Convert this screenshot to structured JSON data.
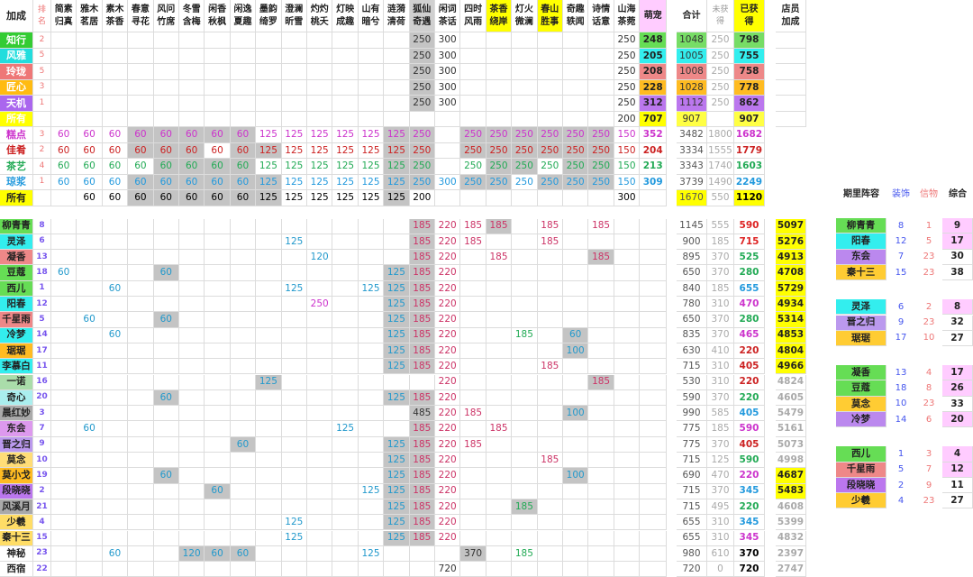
{
  "title": "加成",
  "hdr": {
    "rank": "排\n名",
    "cols": [
      "简素\n归真",
      "雅木\n茗居",
      "素木\n茶香",
      "春意\n寻花",
      "风问\n竹席",
      "冬雪\n含梅",
      "闲香\n秋枫",
      "闲逸\n夏趣",
      "墨韵\n绮罗",
      "澄澜\n昕雪",
      "灼灼\n桃夭",
      "灯映\n成趣",
      "山有\n暗兮",
      "涟漪\n清荷",
      "狐仙\n奇遇",
      "闲词\n茶话",
      "四时\n风雨",
      "茶香\n绕岸",
      "灯火\n微澜",
      "春山\n胜事",
      "奇趣\n轶闻",
      "诗情\n话意",
      "山海\n茶菀"
    ],
    "pet": "萌宠",
    "total": "合计",
    "unobt": "未获\n得",
    "obt": "已获\n得",
    "staff": "店员\n加成"
  },
  "colors": {
    "gray": "#c4c4c4",
    "yellow": "#ffff00",
    "grid": "#dcdcdc",
    "ylw_total": "#ffff33",
    "pink_total": "#ffccff"
  },
  "rowsTop": [
    {
      "label": "知行",
      "lb": "#33cc33",
      "rank": "2",
      "vals": {
        "14": "250",
        "15": "300",
        "22": "250"
      },
      "gray": [
        14
      ],
      "pet": "248",
      "pb": "#66dd55",
      "total": "1048",
      "tb": "#77dd66",
      "un": "250",
      "ob": "798",
      "obb": "#77dd66"
    },
    {
      "label": "风雅",
      "lb": "#22dddd",
      "rank": "5",
      "vals": {
        "14": "250",
        "15": "300",
        "22": "250"
      },
      "gray": [
        14
      ],
      "pet": "205",
      "pb": "#33eeee",
      "total": "1005",
      "tb": "#33eeee",
      "un": "250",
      "ob": "755",
      "obb": "#33eeee"
    },
    {
      "label": "玲珑",
      "lb": "#ee7777",
      "rank": "5",
      "vals": {
        "14": "250",
        "15": "300",
        "22": "250"
      },
      "gray": [
        14
      ],
      "pet": "208",
      "pb": "#ee8888",
      "total": "1008",
      "tb": "#ee8888",
      "un": "250",
      "ob": "758",
      "obb": "#ee8888"
    },
    {
      "label": "匠心",
      "lb": "#ffbb11",
      "rank": "3",
      "vals": {
        "14": "250",
        "15": "300",
        "22": "250"
      },
      "gray": [
        14
      ],
      "pet": "228",
      "pb": "#ffbb22",
      "total": "1028",
      "tb": "#ffbb22",
      "un": "250",
      "ob": "778",
      "obb": "#ffbb22"
    },
    {
      "label": "天机",
      "lb": "#aa66ee",
      "rank": "1",
      "vals": {
        "14": "250",
        "15": "300",
        "22": "250"
      },
      "gray": [
        14
      ],
      "pet": "312",
      "pb": "#bb77ee",
      "total": "1112",
      "tb": "#bb77ee",
      "un": "250",
      "ob": "862",
      "obb": "#bb77ee"
    },
    {
      "label": "所有",
      "lb": "#ffff00",
      "rank": "",
      "vals": {
        "22": "200"
      },
      "gray": [],
      "pet": "707",
      "pb": "#ffff00",
      "total": "907",
      "tb": "#ffff44",
      "un": "",
      "ob": "907",
      "obb": "#ffff44"
    }
  ],
  "rowsMid": [
    {
      "label": "糕点",
      "lc": "#cc33cc",
      "rank": "3",
      "vals": [
        "60",
        "60",
        "60",
        "60",
        "60",
        "60",
        "60",
        "60",
        "125",
        "125",
        "125",
        "125",
        "125",
        "125",
        "250",
        "",
        "250",
        "250",
        "250",
        "250",
        "250",
        "250",
        "150"
      ],
      "gray": [
        3,
        4,
        5,
        6,
        7,
        13,
        14,
        16,
        17,
        18,
        19,
        20,
        21
      ],
      "white": [],
      "pet": "352",
      "total": "3482",
      "un": "1800",
      "ob": "1682"
    },
    {
      "label": "佳肴",
      "lc": "#cc2222",
      "rank": "2",
      "vals": [
        "60",
        "60",
        "60",
        "60",
        "60",
        "60",
        "60",
        "60",
        "125",
        "125",
        "125",
        "125",
        "125",
        "125",
        "250",
        "",
        "250",
        "250",
        "250",
        "250",
        "250",
        "250",
        "150"
      ],
      "gray": [
        3,
        4,
        5,
        7,
        8,
        13,
        14,
        16,
        17,
        18,
        19,
        20,
        21
      ],
      "white": [
        6
      ],
      "pet": "204",
      "total": "3334",
      "un": "1555",
      "ob": "1779"
    },
    {
      "label": "茶艺",
      "lc": "#22aa55",
      "rank": "4",
      "vals": [
        "60",
        "60",
        "60",
        "60",
        "60",
        "60",
        "60",
        "60",
        "125",
        "125",
        "125",
        "125",
        "125",
        "125",
        "250",
        "",
        "250",
        "250",
        "250",
        "250",
        "250",
        "250",
        "150"
      ],
      "gray": [
        4,
        5,
        6,
        7,
        13,
        14,
        17,
        18,
        20,
        21
      ],
      "white": [],
      "pet": "213",
      "total": "3343",
      "un": "1740",
      "ob": "1603"
    },
    {
      "label": "琼浆",
      "lc": "#2299dd",
      "rank": "1",
      "vals": [
        "60",
        "60",
        "60",
        "60",
        "60",
        "60",
        "60",
        "60",
        "125",
        "125",
        "125",
        "125",
        "125",
        "125",
        "250",
        "300",
        "250",
        "250",
        "250",
        "250",
        "250",
        "250",
        "150"
      ],
      "gray": [
        3,
        4,
        5,
        6,
        7,
        8,
        13,
        14,
        16,
        17,
        19,
        20,
        21
      ],
      "white": [],
      "pet": "309",
      "total": "3739",
      "un": "1490",
      "ob": "2249"
    },
    {
      "label": "所有",
      "lc": "#000000",
      "rank": "",
      "vals": [
        "",
        "60",
        "60",
        "60",
        "60",
        "60",
        "60",
        "60",
        "125",
        "125",
        "125",
        "125",
        "125",
        "125",
        "200",
        "",
        "",
        "",
        "",
        "",
        "",
        "",
        "300"
      ],
      "gray": [
        3,
        4,
        5,
        6,
        7,
        8,
        13
      ],
      "white": [],
      "pet": "",
      "total": "1670",
      "un": "550",
      "ob": "1120"
    }
  ],
  "midColors": {
    "pet": [
      "#cc33cc",
      "#cc2222",
      "#22aa55",
      "#2299dd",
      "#000000"
    ],
    "ob": [
      "#cc33cc",
      "#cc2222",
      "#22aa55",
      "#2299dd",
      "#000000"
    ]
  },
  "rowsChar": [
    {
      "name": "柳青青",
      "nb": "#66dd55",
      "rank": "8",
      "rc": "#7755ee",
      "v": {
        "14": "185",
        "15": "220",
        "16": "185",
        "17": "185",
        "19": "185",
        "21": "185"
      },
      "g": [
        14,
        17
      ],
      "t": "1145",
      "u": "555",
      "o": "590",
      "oc": "#dd2222",
      "s": "5097",
      "sb": "#ffff00"
    },
    {
      "name": "灵泽",
      "nb": "#33eeee",
      "rank": "6",
      "rc": "#7755ee",
      "v": {
        "9": "125",
        "14": "185",
        "15": "220",
        "16": "185",
        "19": "185"
      },
      "g": [
        14
      ],
      "t": "900",
      "u": "185",
      "o": "715",
      "oc": "#dd2222",
      "s": "5276",
      "sb": "#ffff00"
    },
    {
      "name": "凝香",
      "nb": "#ee8888",
      "rank": "13",
      "rc": "#7755ee",
      "v": {
        "10": "120",
        "14": "185",
        "15": "220",
        "17": "185",
        "21": "185"
      },
      "g": [
        14,
        21
      ],
      "t": "895",
      "u": "370",
      "o": "525",
      "oc": "#22aa55",
      "s": "4913",
      "sb": "#ffff00"
    },
    {
      "name": "豆蔻",
      "nb": "#66dd55",
      "rank": "18",
      "rc": "#7755ee",
      "v": {
        "0": "60",
        "4": "60",
        "13": "125",
        "14": "185",
        "15": "220"
      },
      "g": [
        4,
        13,
        14
      ],
      "t": "650",
      "u": "370",
      "o": "280",
      "oc": "#22aa55",
      "s": "4708",
      "sb": "#ffff00"
    },
    {
      "name": "西儿",
      "nb": "#66dd55",
      "rank": "1",
      "rc": "#7755ee",
      "v": {
        "2": "60",
        "9": "125",
        "12": "125",
        "13": "125",
        "14": "185",
        "15": "220"
      },
      "g": [
        13,
        14
      ],
      "t": "840",
      "u": "185",
      "o": "655",
      "oc": "#2299dd",
      "s": "5729",
      "sb": "#ffff00"
    },
    {
      "name": "阳春",
      "nb": "#33eeee",
      "rank": "12",
      "rc": "#7755ee",
      "v": {
        "10": "250",
        "13": "125",
        "14": "185",
        "15": "220"
      },
      "g": [
        13,
        14
      ],
      "t": "780",
      "u": "310",
      "o": "470",
      "oc": "#cc33cc",
      "s": "4934",
      "sb": "#ffff00"
    },
    {
      "name": "千星雨",
      "nb": "#ee8888",
      "rank": "5",
      "rc": "#7755ee",
      "v": {
        "1": "60",
        "4": "60",
        "13": "125",
        "14": "185",
        "15": "220"
      },
      "g": [
        4,
        13,
        14
      ],
      "t": "650",
      "u": "370",
      "o": "280",
      "oc": "#22aa55",
      "s": "5314",
      "sb": "#ffff00"
    },
    {
      "name": "冷梦",
      "nb": "#33eeee",
      "rank": "14",
      "rc": "#7755ee",
      "v": {
        "2": "60",
        "13": "125",
        "14": "185",
        "15": "220",
        "18": "185",
        "20": "60"
      },
      "g": [
        13,
        14,
        20
      ],
      "t": "835",
      "u": "370",
      "o": "465",
      "oc": "#cc33cc",
      "s": "4853",
      "sb": "#ffff00"
    },
    {
      "name": "琚琚",
      "nb": "#ffbb22",
      "rank": "17",
      "rc": "#7755ee",
      "v": {
        "13": "125",
        "14": "185",
        "15": "220",
        "20": "100"
      },
      "g": [
        13,
        14,
        20
      ],
      "t": "630",
      "u": "410",
      "o": "220",
      "oc": "#cc2222",
      "s": "4804",
      "sb": "#ffff00"
    },
    {
      "name": "李慕白",
      "nb": "#33eeee",
      "rank": "11",
      "rc": "#7755ee",
      "v": {
        "13": "125",
        "14": "185",
        "15": "220",
        "19": "185"
      },
      "g": [
        13,
        14
      ],
      "t": "715",
      "u": "310",
      "o": "405",
      "oc": "#cc2222",
      "s": "4966",
      "sb": "#ffff00"
    },
    {
      "name": "一诺",
      "nb": "#aaddaa",
      "rank": "16",
      "rc": "#7755ee",
      "v": {
        "8": "125",
        "15": "220",
        "21": "185"
      },
      "g": [
        8,
        21
      ],
      "t": "530",
      "u": "310",
      "o": "220",
      "oc": "#cc2222",
      "s": "4824",
      "sb": ""
    },
    {
      "name": "奇心",
      "nb": "#aaeeee",
      "rank": "20",
      "rc": "#7755ee",
      "v": {
        "4": "60",
        "13": "125",
        "14": "185",
        "15": "220"
      },
      "g": [
        4,
        13,
        14
      ],
      "t": "590",
      "u": "370",
      "o": "220",
      "oc": "#22aa55",
      "s": "4605",
      "sb": ""
    },
    {
      "name": "晨红妙",
      "nb": "#aaaaaa",
      "rank": "3",
      "rc": "#7755ee",
      "v": {
        "14": "485",
        "15": "220",
        "16": "185",
        "20": "100"
      },
      "g": [
        14,
        20
      ],
      "t": "990",
      "u": "585",
      "o": "405",
      "oc": "#2299dd",
      "s": "5479",
      "sb": ""
    },
    {
      "name": "东会",
      "nb": "#dd99ee",
      "rank": "7",
      "rc": "#7755ee",
      "v": {
        "1": "60",
        "11": "125",
        "14": "185",
        "15": "220",
        "17": "185"
      },
      "g": [
        14
      ],
      "t": "775",
      "u": "185",
      "o": "590",
      "oc": "#cc33cc",
      "s": "5161",
      "sb": ""
    },
    {
      "name": "晋之归",
      "nb": "#bb99ee",
      "rank": "9",
      "rc": "#7755ee",
      "v": {
        "7": "60",
        "13": "125",
        "14": "185",
        "15": "220",
        "16": "185"
      },
      "g": [
        7,
        13,
        14
      ],
      "t": "775",
      "u": "370",
      "o": "405",
      "oc": "#cc2222",
      "s": "5073",
      "sb": ""
    },
    {
      "name": "莫念",
      "nb": "#ffdd77",
      "rank": "10",
      "rc": "#7755ee",
      "v": {
        "13": "125",
        "14": "185",
        "15": "220",
        "19": "185"
      },
      "g": [
        13,
        14
      ],
      "t": "715",
      "u": "125",
      "o": "590",
      "oc": "#22aa55",
      "s": "4998",
      "sb": ""
    },
    {
      "name": "莫小戈",
      "nb": "#ffbb22",
      "rank": "19",
      "rc": "#7755ee",
      "v": {
        "4": "60",
        "13": "125",
        "14": "185",
        "15": "220",
        "20": "100"
      },
      "g": [
        4,
        13,
        14,
        20
      ],
      "t": "690",
      "u": "470",
      "o": "220",
      "oc": "#cc33cc",
      "s": "4687",
      "sb": "#ffff00"
    },
    {
      "name": "段晓晓",
      "nb": "#bb77ee",
      "rank": "2",
      "rc": "#7755ee",
      "v": {
        "6": "60",
        "12": "125",
        "13": "125",
        "14": "185",
        "15": "220"
      },
      "g": [
        6,
        13,
        14
      ],
      "t": "715",
      "u": "370",
      "o": "345",
      "oc": "#2299dd",
      "s": "5483",
      "sb": "#ffff00"
    },
    {
      "name": "风溪月",
      "nb": "#aaaaaa",
      "rank": "21",
      "rc": "#7755ee",
      "v": {
        "13": "125",
        "14": "185",
        "15": "220",
        "18": "185"
      },
      "g": [
        13,
        14,
        18
      ],
      "t": "715",
      "u": "495",
      "o": "220",
      "oc": "#22aa55",
      "s": "4608",
      "sb": ""
    },
    {
      "name": "少羲",
      "nb": "#ffdd66",
      "rank": "4",
      "rc": "#7755ee",
      "v": {
        "9": "125",
        "13": "125",
        "14": "185",
        "15": "220"
      },
      "g": [
        13,
        14
      ],
      "t": "655",
      "u": "310",
      "o": "345",
      "oc": "#2299dd",
      "s": "5399",
      "sb": ""
    },
    {
      "name": "秦十三",
      "nb": "#ffdd66",
      "rank": "15",
      "rc": "#7755ee",
      "v": {
        "9": "125",
        "13": "125",
        "14": "185",
        "15": "220"
      },
      "g": [
        13,
        14
      ],
      "t": "655",
      "u": "310",
      "o": "345",
      "oc": "#cc33cc",
      "s": "4832",
      "sb": ""
    },
    {
      "name": "神秘",
      "nb": "#ffffff",
      "rank": "23",
      "rc": "#7755ee",
      "v": {
        "2": "60",
        "5": "120",
        "6": "60",
        "7": "60",
        "12": "125",
        "16": "370",
        "18": "185"
      },
      "g": [
        5,
        6,
        7,
        16
      ],
      "t": "980",
      "u": "610",
      "o": "370",
      "oc": "#000000",
      "s": "2397",
      "sb": ""
    },
    {
      "name": "西宿",
      "nb": "#ffffff",
      "rank": "22",
      "rc": "#7755ee",
      "v": {
        "15": "720"
      },
      "g": [],
      "t": "720",
      "u": "0",
      "o": "720",
      "oc": "#000000",
      "s": "2747",
      "sb": ""
    }
  ],
  "side": {
    "head": {
      "team": "期里阵容",
      "zs": "装饰",
      "xw": "信物",
      "zh": "综合"
    },
    "groups": [
      [
        {
          "n": "柳青青",
          "b": "#66dd55",
          "a": "8",
          "x": "1",
          "z": "9",
          "pk": true
        },
        {
          "n": "阳春",
          "b": "#33eeee",
          "a": "12",
          "x": "5",
          "z": "17",
          "pk": true
        },
        {
          "n": "东会",
          "b": "#bb88ee",
          "a": "7",
          "x": "23",
          "z": "30",
          "pk": false
        },
        {
          "n": "秦十三",
          "b": "#ffcc33",
          "a": "15",
          "x": "23",
          "z": "38",
          "pk": false
        }
      ],
      [
        {
          "n": "灵泽",
          "b": "#33eeee",
          "a": "6",
          "x": "2",
          "z": "8",
          "pk": true
        },
        {
          "n": "晋之归",
          "b": "#bb99ee",
          "a": "9",
          "x": "23",
          "z": "32",
          "pk": false
        },
        {
          "n": "琚琚",
          "b": "#ffcc33",
          "a": "17",
          "x": "10",
          "z": "27",
          "pk": false
        }
      ],
      [
        {
          "n": "凝香",
          "b": "#66dd55",
          "a": "13",
          "x": "4",
          "z": "17",
          "pk": true
        },
        {
          "n": "豆蔻",
          "b": "#66dd55",
          "a": "18",
          "x": "8",
          "z": "26",
          "pk": true
        },
        {
          "n": "莫念",
          "b": "#ffcc33",
          "a": "10",
          "x": "23",
          "z": "33",
          "pk": false
        },
        {
          "n": "冷梦",
          "b": "#bb88ee",
          "a": "14",
          "x": "6",
          "z": "20",
          "pk": true
        }
      ],
      [
        {
          "n": "西儿",
          "b": "#66dd55",
          "a": "1",
          "x": "3",
          "z": "4",
          "pk": true
        },
        {
          "n": "千星雨",
          "b": "#ee8888",
          "a": "5",
          "x": "7",
          "z": "12",
          "pk": true
        },
        {
          "n": "段晓晓",
          "b": "#bb77ee",
          "a": "2",
          "x": "9",
          "z": "11",
          "pk": false
        },
        {
          "n": "少羲",
          "b": "#ffcc33",
          "a": "4",
          "x": "23",
          "z": "27",
          "pk": false
        }
      ]
    ]
  }
}
